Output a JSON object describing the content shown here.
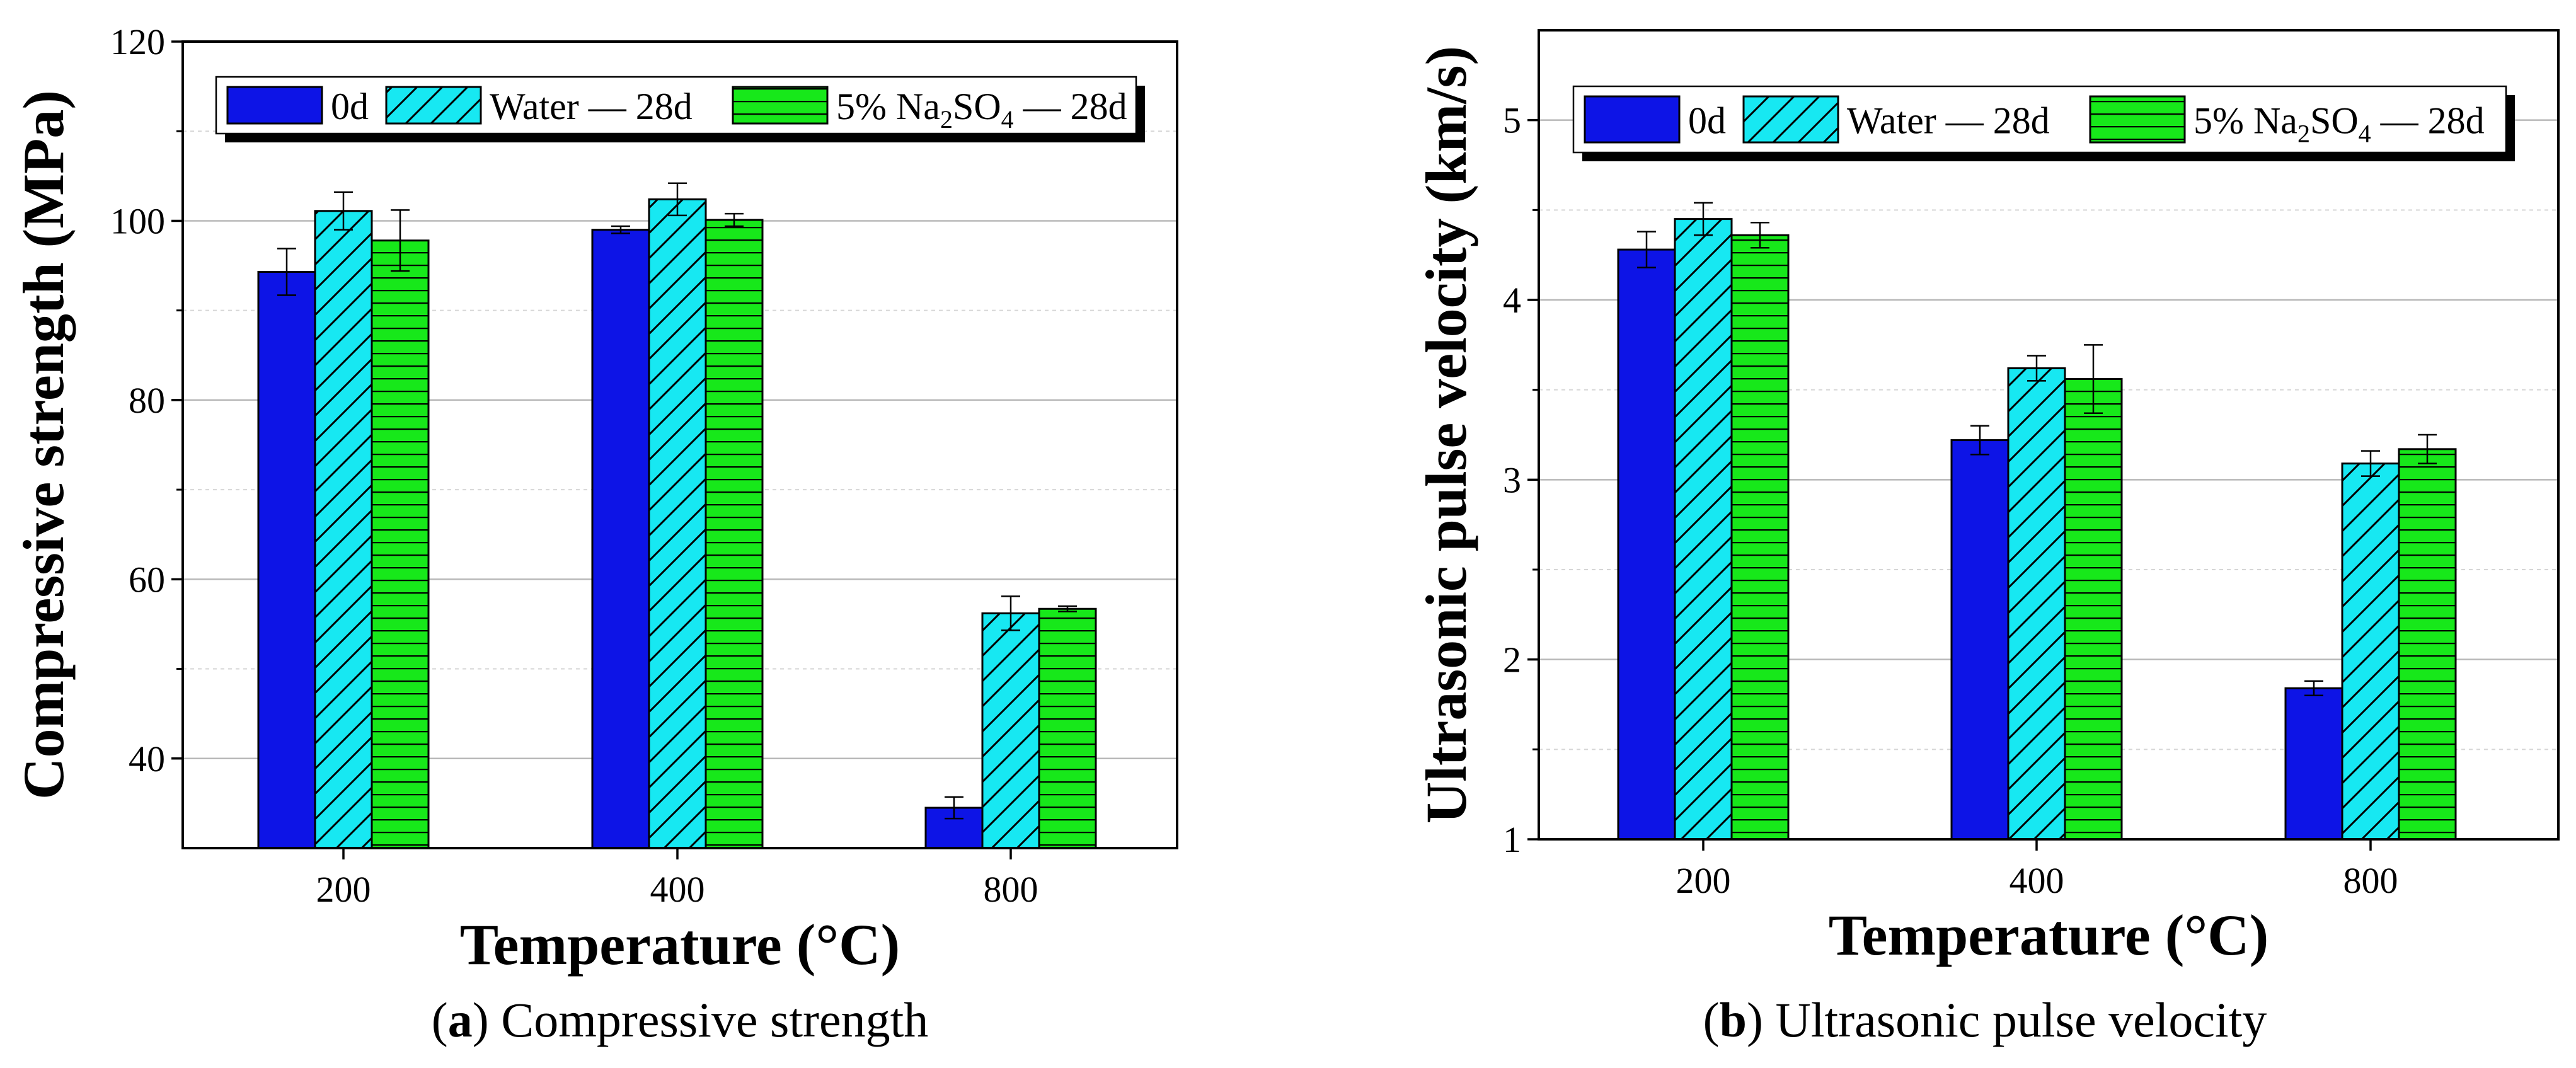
{
  "colors": {
    "series_0d": "#0d14e6",
    "series_water": "#17e8f2",
    "series_na2so4": "#17e81a",
    "axis": "#000000",
    "grid_major": "#b8b8b8",
    "grid_minor": "#d6d6d6"
  },
  "chart_data": [
    {
      "type": "bar",
      "panel": "a",
      "caption_letter": "a",
      "caption_text": " Compressive strength",
      "xlabel": "Temperature (°C)",
      "ylabel": "Compressive strength (MPa)",
      "categories": [
        "200",
        "400",
        "800"
      ],
      "ylim": [
        30,
        120
      ],
      "yticks": [
        40,
        60,
        80,
        100,
        120
      ],
      "ytick_labels": [
        "40",
        "60",
        "80",
        "100",
        "120"
      ],
      "series": [
        {
          "name": "0d",
          "values": [
            94.3,
            99.0,
            34.5
          ],
          "errors": [
            2.6,
            0.4,
            1.2
          ]
        },
        {
          "name": "Water—28d",
          "values": [
            101.1,
            102.4,
            56.2
          ],
          "errors": [
            2.1,
            1.8,
            1.9
          ]
        },
        {
          "name": "5% Na2SO4—28d",
          "values": [
            97.8,
            100.1,
            56.7
          ],
          "errors": [
            3.4,
            0.7,
            0.3
          ]
        }
      ],
      "legend": {
        "position": "top",
        "entries": [
          {
            "label": "0d"
          },
          {
            "label": "Water",
            "suffix": "28d"
          },
          {
            "label": "5% Na",
            "sub1": "2",
            "mid": "SO",
            "sub2": "4",
            "suffix": "28d"
          }
        ]
      }
    },
    {
      "type": "bar",
      "panel": "b",
      "caption_letter": "b",
      "caption_text": " Ultrasonic pulse velocity",
      "xlabel": "Temperature (°C)",
      "ylabel": "Ultrasonic pulse velocity (km/s)",
      "categories": [
        "200",
        "400",
        "800"
      ],
      "ylim": [
        1,
        5.5
      ],
      "yticks": [
        1,
        2,
        3,
        4,
        5
      ],
      "ytick_labels": [
        "1",
        "2",
        "3",
        "4",
        "5"
      ],
      "series": [
        {
          "name": "0d",
          "values": [
            4.28,
            3.22,
            1.84
          ],
          "errors": [
            0.1,
            0.08,
            0.04
          ]
        },
        {
          "name": "Water—28d",
          "values": [
            4.45,
            3.62,
            3.09
          ],
          "errors": [
            0.09,
            0.07,
            0.07
          ]
        },
        {
          "name": "5% Na2SO4—28d",
          "values": [
            4.36,
            3.56,
            3.17
          ],
          "errors": [
            0.07,
            0.19,
            0.08
          ]
        }
      ],
      "legend": {
        "position": "top",
        "entries": [
          {
            "label": "0d"
          },
          {
            "label": "Water",
            "suffix": "28d"
          },
          {
            "label": "5% Na",
            "sub1": "2",
            "mid": "SO",
            "sub2": "4",
            "suffix": "28d"
          }
        ]
      }
    }
  ]
}
